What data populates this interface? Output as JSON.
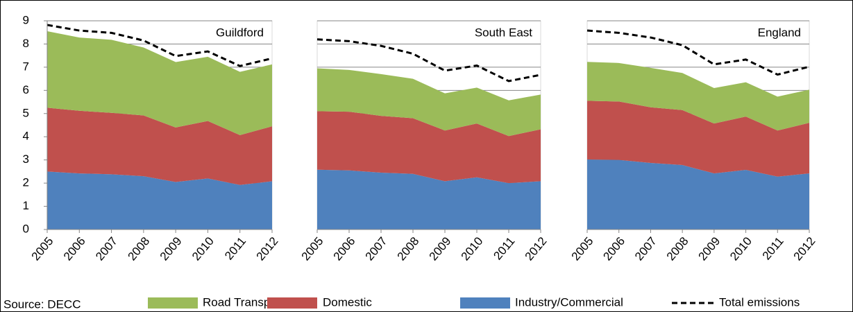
{
  "source": "Source: DECC",
  "chart_data": [
    {
      "type": "area",
      "title": "Guildford",
      "categories": [
        "2005",
        "2006",
        "2007",
        "2008",
        "2009",
        "2010",
        "2011",
        "2012"
      ],
      "ylim": [
        0,
        9
      ],
      "yticks": [
        0,
        1,
        2,
        3,
        4,
        5,
        6,
        7,
        8,
        9
      ],
      "grid": true,
      "series": [
        {
          "name": "Road Transport",
          "type": "area",
          "color": "#9bbb59",
          "values": [
            3.3,
            3.16,
            3.15,
            2.93,
            2.82,
            2.77,
            2.73,
            2.67
          ]
        },
        {
          "name": "Domestic",
          "type": "area",
          "color": "#c0504d",
          "values": [
            2.75,
            2.7,
            2.65,
            2.62,
            2.35,
            2.48,
            2.15,
            2.37
          ]
        },
        {
          "name": "Industry/Commercial",
          "type": "area",
          "color": "#4f81bd",
          "values": [
            2.5,
            2.42,
            2.38,
            2.3,
            2.05,
            2.2,
            1.92,
            2.08
          ]
        },
        {
          "name": "Total emissions",
          "type": "line",
          "color": "#000000",
          "values": [
            8.82,
            8.58,
            8.48,
            8.15,
            7.48,
            7.68,
            7.05,
            7.38
          ]
        }
      ]
    },
    {
      "type": "area",
      "title": "South East",
      "categories": [
        "2005",
        "2006",
        "2007",
        "2008",
        "2009",
        "2010",
        "2011",
        "2012"
      ],
      "ylim": [
        0,
        9
      ],
      "yticks": [
        0,
        1,
        2,
        3,
        4,
        5,
        6,
        7,
        8,
        9
      ],
      "grid": true,
      "series": [
        {
          "name": "Road Transport",
          "type": "area",
          "color": "#9bbb59",
          "values": [
            1.85,
            1.8,
            1.8,
            1.7,
            1.6,
            1.55,
            1.54,
            1.5
          ]
        },
        {
          "name": "Domestic",
          "type": "area",
          "color": "#c0504d",
          "values": [
            2.52,
            2.53,
            2.45,
            2.4,
            2.19,
            2.32,
            2.03,
            2.24
          ]
        },
        {
          "name": "Industry/Commercial",
          "type": "area",
          "color": "#4f81bd",
          "values": [
            2.58,
            2.55,
            2.45,
            2.4,
            2.08,
            2.25,
            2.0,
            2.08
          ]
        },
        {
          "name": "Total emissions",
          "type": "line",
          "color": "#000000",
          "values": [
            8.2,
            8.12,
            7.92,
            7.58,
            6.85,
            7.07,
            6.4,
            6.67
          ]
        }
      ]
    },
    {
      "type": "area",
      "title": "England",
      "categories": [
        "2005",
        "2006",
        "2007",
        "2008",
        "2009",
        "2010",
        "2011",
        "2012"
      ],
      "ylim": [
        0,
        9
      ],
      "yticks": [
        0,
        1,
        2,
        3,
        4,
        5,
        6,
        7,
        8,
        9
      ],
      "grid": true,
      "series": [
        {
          "name": "Road Transport",
          "type": "area",
          "color": "#9bbb59",
          "values": [
            1.68,
            1.66,
            1.7,
            1.6,
            1.53,
            1.48,
            1.46,
            1.43
          ]
        },
        {
          "name": "Domestic",
          "type": "area",
          "color": "#c0504d",
          "values": [
            2.53,
            2.52,
            2.4,
            2.37,
            2.15,
            2.3,
            1.99,
            2.18
          ]
        },
        {
          "name": "Industry/Commercial",
          "type": "area",
          "color": "#4f81bd",
          "values": [
            3.02,
            3.0,
            2.87,
            2.78,
            2.42,
            2.57,
            2.28,
            2.42
          ]
        },
        {
          "name": "Total emissions",
          "type": "line",
          "color": "#000000",
          "values": [
            8.58,
            8.48,
            8.28,
            7.95,
            7.12,
            7.33,
            6.68,
            7.02
          ]
        }
      ]
    }
  ]
}
